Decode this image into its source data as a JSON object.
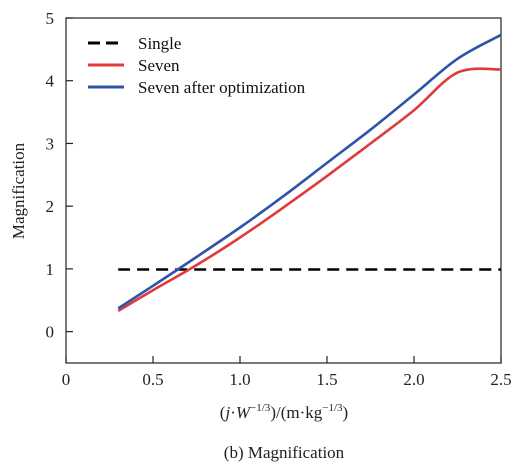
{
  "chart_data": {
    "type": "line",
    "caption": "(b) Magnification",
    "ylabel": "Magnification",
    "xlabel": {
      "prefix": "(",
      "j": "j",
      "dot1": "·",
      "W": "W",
      "sup1": "−1/3",
      "mid": ")/(m·kg",
      "sup2": "−1/3",
      "suffix": ")"
    },
    "xlim": [
      0,
      2.5
    ],
    "ylim": [
      -0.5,
      5
    ],
    "x_ticks": [
      "0",
      "0.5",
      "1.0",
      "1.5",
      "2.0",
      "2.5"
    ],
    "x_tick_values": [
      0,
      0.5,
      1.0,
      1.5,
      2.0,
      2.5
    ],
    "y_ticks": [
      "0",
      "1",
      "2",
      "3",
      "4",
      "5"
    ],
    "y_tick_values": [
      0,
      1,
      2,
      3,
      4,
      5
    ],
    "legend_position": "top-left",
    "series": [
      {
        "name": "Single",
        "style": "dashed",
        "color": "#000000",
        "x": [
          0.3,
          2.5
        ],
        "y": [
          0.99,
          0.99
        ]
      },
      {
        "name": "Seven",
        "style": "solid",
        "color": "#e03a3a",
        "x": [
          0.3,
          0.5,
          0.75,
          1.0,
          1.25,
          1.5,
          1.75,
          2.0,
          2.25,
          2.5
        ],
        "y": [
          0.33,
          0.66,
          1.06,
          1.5,
          1.98,
          2.48,
          3.0,
          3.53,
          4.13,
          4.18
        ]
      },
      {
        "name": "Seven after optimization",
        "style": "solid",
        "color": "#2e54a8",
        "x": [
          0.3,
          0.5,
          0.75,
          1.0,
          1.25,
          1.5,
          1.75,
          2.0,
          2.25,
          2.5
        ],
        "y": [
          0.37,
          0.73,
          1.19,
          1.66,
          2.16,
          2.69,
          3.22,
          3.78,
          4.35,
          4.73
        ]
      }
    ]
  }
}
